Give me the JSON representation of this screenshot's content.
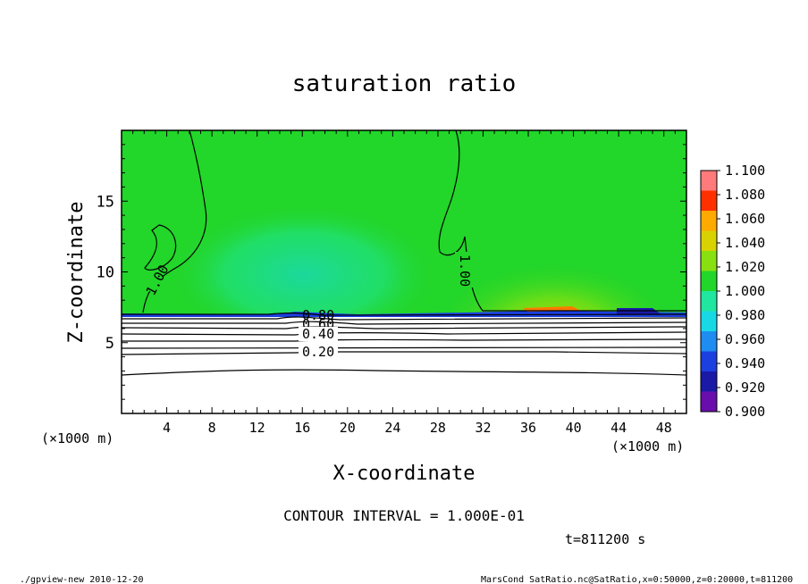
{
  "chart_data": {
    "type": "heatmap",
    "title": "saturation ratio",
    "xlabel": "X-coordinate",
    "ylabel": "Z-coordinate",
    "x_unit_left": "(×1000 m)",
    "x_unit_right": "(×1000 m)",
    "xlim": [
      0,
      50
    ],
    "ylim": [
      0,
      20
    ],
    "x_ticks": [
      4,
      8,
      12,
      16,
      20,
      24,
      28,
      32,
      36,
      40,
      44,
      48
    ],
    "y_ticks": [
      5,
      10,
      15
    ],
    "colorbar": {
      "levels": [
        "0.900",
        "0.920",
        "0.940",
        "0.960",
        "0.980",
        "1.000",
        "1.020",
        "1.040",
        "1.060",
        "1.080",
        "1.100"
      ],
      "colors": [
        "#6a0dad",
        "#1a1aa6",
        "#1c3fe0",
        "#1e8cf0",
        "#19d8e6",
        "#20e6a0",
        "#22d62a",
        "#88e010",
        "#d8d200",
        "#ffaa00",
        "#ff3000",
        "#ff7a7a"
      ]
    },
    "contour_labels": [
      "1.00",
      "1.00",
      "0.80",
      "0.60",
      "0.40",
      "0.20"
    ],
    "contour_interval_text": "CONTOUR INTERVAL = 1.000E-01",
    "time_text": "t=811200 s"
  },
  "footer": {
    "left": "./gpview-new  2010-12-20",
    "right": "MarsCond_SatRatio.nc@SatRatio,x=0:50000,z=0:20000,t=811200"
  }
}
